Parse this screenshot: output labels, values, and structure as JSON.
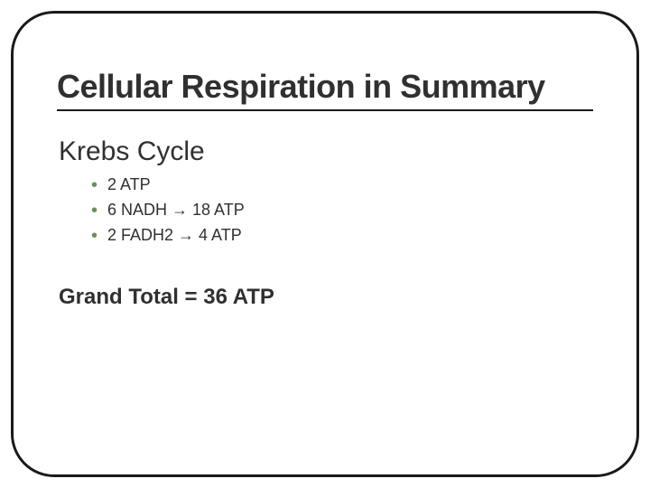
{
  "slide": {
    "title": "Cellular Respiration in Summary",
    "subtitle": "Krebs Cycle",
    "bullets": [
      {
        "text": "2 ATP"
      },
      {
        "text": "6 NADH →  18 ATP"
      },
      {
        "text": "2 FADH2 →  4 ATP"
      }
    ],
    "grand_total": "Grand Total = 36 ATP"
  },
  "style": {
    "frame_border_color": "#1a1a1a",
    "frame_border_width": 3,
    "frame_border_radius": 48,
    "title_color": "#303030",
    "title_fontsize": 36,
    "title_fontweight": 900,
    "title_underline_color": "#1a1a1a",
    "subtitle_color": "#303030",
    "subtitle_fontsize": 30,
    "bullet_color": "#6b8e5a",
    "bullet_text_color": "#303030",
    "bullet_fontsize": 18,
    "grand_total_fontsize": 24,
    "grand_total_fontweight": 700,
    "background_color": "#ffffff"
  }
}
